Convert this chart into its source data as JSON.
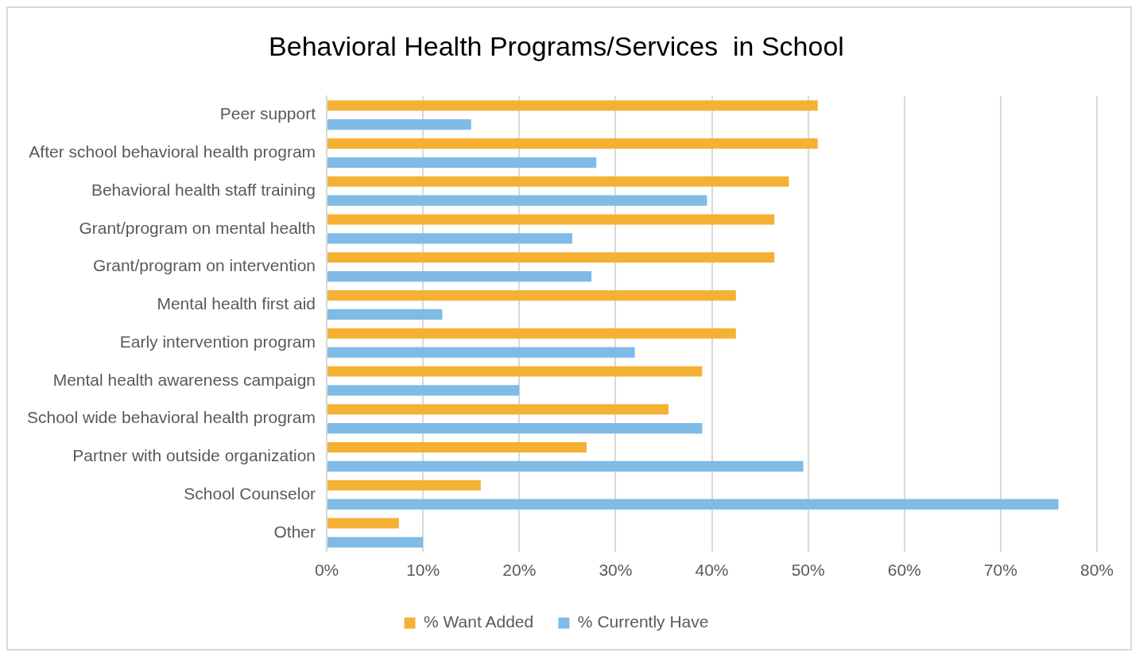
{
  "chart_data": {
    "type": "bar",
    "orientation": "horizontal",
    "title": "Behavioral Health Programs/Services  in School",
    "categories": [
      "Peer support",
      "After school behavioral health program",
      "Behavioral health staff training",
      "Grant/program on mental health",
      "Grant/program on intervention",
      "Mental health first aid",
      "Early intervention program",
      "Mental health awareness campaign",
      "School wide behavioral health program",
      "Partner with outside organization",
      "School Counselor",
      "Other"
    ],
    "series": [
      {
        "name": "% Want Added",
        "color": "#f4b133",
        "values": [
          51,
          51,
          48,
          46.5,
          46.5,
          42.5,
          42.5,
          39,
          35.5,
          27,
          16,
          7.5
        ]
      },
      {
        "name": "% Currently Have",
        "color": "#7fbbe6",
        "values": [
          15,
          28,
          39.5,
          25.5,
          27.5,
          12,
          32,
          20,
          39,
          49.5,
          76,
          10
        ]
      }
    ],
    "xlim": [
      0,
      80
    ],
    "xticks": [
      {
        "value": 0,
        "label": "0%"
      },
      {
        "value": 10,
        "label": "10%"
      },
      {
        "value": 20,
        "label": "20%"
      },
      {
        "value": 30,
        "label": "30%"
      },
      {
        "value": 40,
        "label": "40%"
      },
      {
        "value": 50,
        "label": "50%"
      },
      {
        "value": 60,
        "label": "60%"
      },
      {
        "value": 70,
        "label": "70%"
      },
      {
        "value": 80,
        "label": "80%"
      }
    ],
    "grid": "x",
    "legend": "bottom"
  }
}
